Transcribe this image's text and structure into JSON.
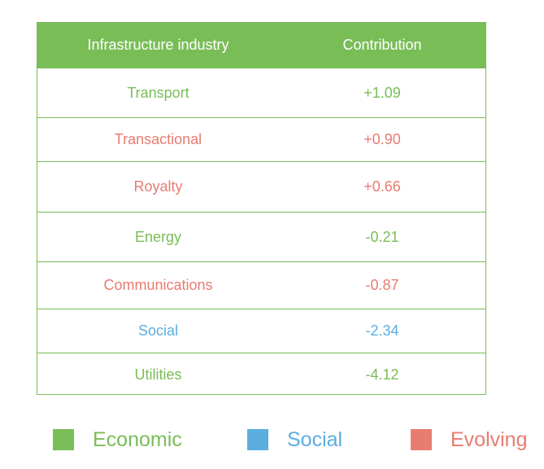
{
  "colors": {
    "economic": "#79BD57",
    "social": "#5AAEE0",
    "evolving": "#E87C71",
    "header_bg": "#79BD57",
    "border": "#79BD57",
    "header_text": "#ffffff"
  },
  "chart_data": {
    "type": "table",
    "columns": [
      "Infrastructure industry",
      "Contribution"
    ],
    "rows": [
      {
        "industry": "Transport",
        "contribution": "+1.09",
        "category": "economic"
      },
      {
        "industry": "Transactional",
        "contribution": "+0.90",
        "category": "evolving"
      },
      {
        "industry": "Royalty",
        "contribution": "+0.66",
        "category": "evolving"
      },
      {
        "industry": "Energy",
        "contribution": "-0.21",
        "category": "economic"
      },
      {
        "industry": "Communications",
        "contribution": "-0.87",
        "category": "evolving"
      },
      {
        "industry": "Social",
        "contribution": "-2.34",
        "category": "social"
      },
      {
        "industry": "Utilities",
        "contribution": "-4.12",
        "category": "economic"
      }
    ],
    "legend": [
      {
        "label": "Economic",
        "category": "economic"
      },
      {
        "label": "Social",
        "category": "social"
      },
      {
        "label": "Evolving",
        "category": "evolving"
      }
    ]
  }
}
